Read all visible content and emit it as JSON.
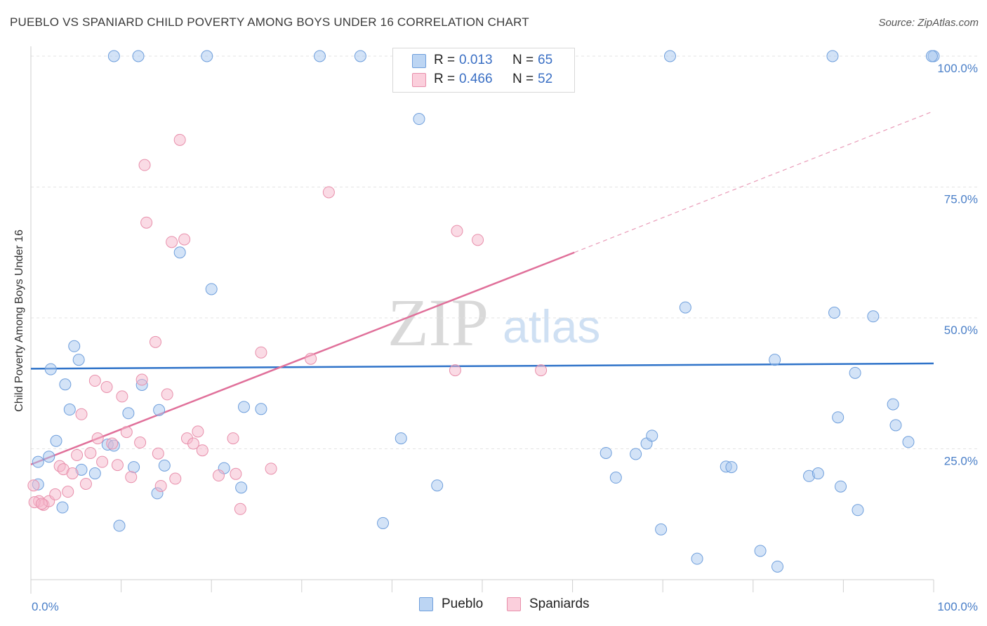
{
  "header": {
    "title": "PUEBLO VS SPANIARD CHILD POVERTY AMONG BOYS UNDER 16 CORRELATION CHART",
    "source": "Source: ZipAtlas.com"
  },
  "watermark": {
    "zip": "ZIP",
    "atlas": "atlas"
  },
  "legend": {
    "rows": [
      {
        "r_label": "R =",
        "r_value": "0.013",
        "n_label": "N =",
        "n_value": "65"
      },
      {
        "r_label": "R =",
        "r_value": "0.466",
        "n_label": "N =",
        "n_value": "52"
      }
    ],
    "bottom": [
      {
        "label": "Pueblo"
      },
      {
        "label": "Spaniards"
      }
    ]
  },
  "colors": {
    "pueblo_fill": "#a8c8f0",
    "pueblo_stroke": "#6f9fdc",
    "pueblo_line": "#2f73c9",
    "spaniards_fill": "#f6b8cb",
    "spaniards_stroke": "#e88fab",
    "spaniards_line": "#e0709a",
    "tick_text": "#4a7fc8",
    "grid": "#e3e3e3"
  },
  "chart_data": {
    "type": "scatter",
    "title": "PUEBLO VS SPANIARD CHILD POVERTY AMONG BOYS UNDER 16 CORRELATION CHART",
    "xlabel": "",
    "ylabel": "Child Poverty Among Boys Under 16",
    "xlim": [
      0,
      100
    ],
    "ylim": [
      0,
      100
    ],
    "x_tick_labels": [
      "0.0%",
      "100.0%"
    ],
    "y_tick_labels": [
      "25.0%",
      "50.0%",
      "75.0%",
      "100.0%"
    ],
    "y_ticks": [
      25,
      50,
      75,
      100
    ],
    "grid": true,
    "legend_position": "top-center",
    "series": [
      {
        "name": "Pueblo",
        "r": 0.013,
        "n": 65,
        "trend": {
          "x": [
            0,
            100
          ],
          "y": [
            40.3,
            41.3
          ],
          "dashed_after": null
        },
        "points": [
          [
            0.8,
            18.2
          ],
          [
            0.8,
            22.5
          ],
          [
            2.0,
            23.5
          ],
          [
            2.2,
            40.2
          ],
          [
            2.8,
            26.5
          ],
          [
            3.5,
            13.8
          ],
          [
            3.8,
            37.3
          ],
          [
            4.3,
            32.5
          ],
          [
            4.8,
            44.6
          ],
          [
            5.3,
            42.0
          ],
          [
            5.6,
            21.0
          ],
          [
            7.1,
            20.3
          ],
          [
            8.5,
            25.8
          ],
          [
            9.2,
            100.0
          ],
          [
            9.2,
            25.6
          ],
          [
            9.8,
            10.3
          ],
          [
            10.8,
            31.8
          ],
          [
            11.4,
            21.5
          ],
          [
            11.9,
            100.0
          ],
          [
            12.3,
            37.2
          ],
          [
            14.0,
            16.5
          ],
          [
            14.2,
            32.4
          ],
          [
            14.8,
            21.8
          ],
          [
            16.5,
            62.5
          ],
          [
            19.5,
            100.0
          ],
          [
            20.0,
            55.5
          ],
          [
            21.4,
            21.3
          ],
          [
            23.3,
            17.6
          ],
          [
            23.6,
            33.0
          ],
          [
            25.5,
            32.6
          ],
          [
            32.0,
            100.0
          ],
          [
            36.5,
            100.0
          ],
          [
            39.0,
            10.8
          ],
          [
            41.0,
            27.0
          ],
          [
            43.0,
            88.0
          ],
          [
            45.0,
            18.0
          ],
          [
            59.5,
            100.0
          ],
          [
            63.7,
            24.2
          ],
          [
            64.8,
            19.5
          ],
          [
            67.0,
            24.0
          ],
          [
            68.2,
            26.0
          ],
          [
            68.8,
            27.5
          ],
          [
            69.8,
            9.6
          ],
          [
            70.8,
            100.0
          ],
          [
            72.5,
            52.0
          ],
          [
            73.8,
            4.0
          ],
          [
            77.0,
            21.6
          ],
          [
            77.6,
            21.5
          ],
          [
            80.8,
            5.5
          ],
          [
            82.4,
            42.0
          ],
          [
            82.7,
            2.5
          ],
          [
            86.2,
            19.8
          ],
          [
            87.2,
            20.3
          ],
          [
            88.8,
            100.0
          ],
          [
            89.0,
            51.0
          ],
          [
            89.4,
            31.0
          ],
          [
            89.7,
            17.8
          ],
          [
            91.3,
            39.5
          ],
          [
            91.6,
            13.3
          ],
          [
            93.3,
            50.3
          ],
          [
            95.5,
            33.5
          ],
          [
            95.8,
            29.5
          ],
          [
            97.2,
            26.3
          ],
          [
            100.0,
            100.0
          ],
          [
            99.8,
            100.0
          ]
        ]
      },
      {
        "name": "Spaniards",
        "r": 0.466,
        "n": 52,
        "trend": {
          "x": [
            0,
            60.2,
            100
          ],
          "y": [
            22.0,
            62.5,
            89.5
          ],
          "dashed_after": 60.2
        },
        "points": [
          [
            0.3,
            18.0
          ],
          [
            0.9,
            15.0
          ],
          [
            1.4,
            14.3
          ],
          [
            2.0,
            15.0
          ],
          [
            2.7,
            16.3
          ],
          [
            3.2,
            21.7
          ],
          [
            3.6,
            21.1
          ],
          [
            4.1,
            16.8
          ],
          [
            4.6,
            20.3
          ],
          [
            5.1,
            23.8
          ],
          [
            5.6,
            31.6
          ],
          [
            6.1,
            18.3
          ],
          [
            6.6,
            24.2
          ],
          [
            7.1,
            38.0
          ],
          [
            7.4,
            27.0
          ],
          [
            7.9,
            22.5
          ],
          [
            8.4,
            36.8
          ],
          [
            9.0,
            26.0
          ],
          [
            9.6,
            21.9
          ],
          [
            10.1,
            35.0
          ],
          [
            10.6,
            28.2
          ],
          [
            11.1,
            19.6
          ],
          [
            12.1,
            26.2
          ],
          [
            12.3,
            38.2
          ],
          [
            12.6,
            79.2
          ],
          [
            12.8,
            68.2
          ],
          [
            13.8,
            45.4
          ],
          [
            14.1,
            24.1
          ],
          [
            14.4,
            17.9
          ],
          [
            15.1,
            35.4
          ],
          [
            15.6,
            64.5
          ],
          [
            16.0,
            19.3
          ],
          [
            16.5,
            84.0
          ],
          [
            17.0,
            65.0
          ],
          [
            17.3,
            27.0
          ],
          [
            18.0,
            26.0
          ],
          [
            18.5,
            28.3
          ],
          [
            19.0,
            24.7
          ],
          [
            20.8,
            19.9
          ],
          [
            22.4,
            27.0
          ],
          [
            22.7,
            20.2
          ],
          [
            23.2,
            13.5
          ],
          [
            25.5,
            43.4
          ],
          [
            26.6,
            21.2
          ],
          [
            31.0,
            42.2
          ],
          [
            33.0,
            74.0
          ],
          [
            47.0,
            40.0
          ],
          [
            47.2,
            66.6
          ],
          [
            49.5,
            64.9
          ],
          [
            56.5,
            40.0
          ],
          [
            0.4,
            14.8
          ],
          [
            1.2,
            14.5
          ]
        ]
      }
    ]
  }
}
